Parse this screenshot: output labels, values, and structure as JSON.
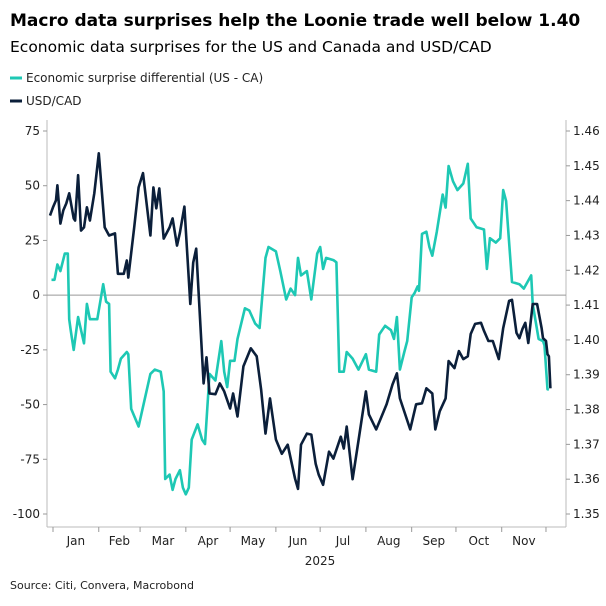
{
  "chart_data": {
    "type": "line",
    "title": "Macro data surprises help the Loonie trade well below 1.40",
    "subtitle": "Economic data surprises for the US and Canada and USD/CAD",
    "xlabel": "2025",
    "source": "Source: Citi, Convera, Macrobond",
    "x_ticks": [
      "Jan",
      "Feb",
      "Mar",
      "Apr",
      "May",
      "Jun",
      "Jul",
      "Aug",
      "Sep",
      "Oct",
      "Nov"
    ],
    "y_left": {
      "ticks": [
        "75",
        "50",
        "25",
        "0",
        "-25",
        "-50",
        "-75",
        "-100"
      ],
      "range": [
        -100,
        75
      ]
    },
    "y_right": {
      "ticks": [
        "1.46",
        "1.45",
        "1.44",
        "1.43",
        "1.42",
        "1.41",
        "1.40",
        "1.39",
        "1.38",
        "1.37",
        "1.36",
        "1.35"
      ],
      "range": [
        1.35,
        1.46
      ]
    },
    "zero_line": true,
    "grid": false,
    "legend_position": "top-left",
    "series": [
      {
        "name": "Economic surprise differential (US - CA)",
        "axis": "left",
        "color": "#1ec8b4",
        "points": [
          [
            "2024-12-31",
            7
          ],
          [
            "2025-01-02",
            7
          ],
          [
            "2025-01-04",
            14
          ],
          [
            "2025-01-06",
            11
          ],
          [
            "2025-01-09",
            19
          ],
          [
            "2025-01-11",
            19
          ],
          [
            "2025-01-12",
            -11
          ],
          [
            "2025-01-13",
            -16
          ],
          [
            "2025-01-15",
            -25
          ],
          [
            "2025-01-18",
            -10
          ],
          [
            "2025-01-22",
            -22
          ],
          [
            "2025-01-24",
            -4
          ],
          [
            "2025-01-26",
            -11
          ],
          [
            "2025-01-31",
            -11
          ],
          [
            "2025-02-04",
            5
          ],
          [
            "2025-02-06",
            -3
          ],
          [
            "2025-02-08",
            -4
          ],
          [
            "2025-02-09",
            -35
          ],
          [
            "2025-02-12",
            -38
          ],
          [
            "2025-02-14",
            -34
          ],
          [
            "2025-02-16",
            -29
          ],
          [
            "2025-02-20",
            -26
          ],
          [
            "2025-02-21",
            -27
          ],
          [
            "2025-02-23",
            -52
          ],
          [
            "2025-02-28",
            -60
          ],
          [
            "2025-03-04",
            -48
          ],
          [
            "2025-03-08",
            -36
          ],
          [
            "2025-03-11",
            -34
          ],
          [
            "2025-03-15",
            -35
          ],
          [
            "2025-03-17",
            -44
          ],
          [
            "2025-03-18",
            -84
          ],
          [
            "2025-03-21",
            -82
          ],
          [
            "2025-03-23",
            -89
          ],
          [
            "2025-03-25",
            -84
          ],
          [
            "2025-03-28",
            -80
          ],
          [
            "2025-03-30",
            -88
          ],
          [
            "2025-04-01",
            -91
          ],
          [
            "2025-04-03",
            -88
          ],
          [
            "2025-04-05",
            -66
          ],
          [
            "2025-04-09",
            -59
          ],
          [
            "2025-04-12",
            -66
          ],
          [
            "2025-04-14",
            -68
          ],
          [
            "2025-04-17",
            -36
          ],
          [
            "2025-04-21",
            -39
          ],
          [
            "2025-04-25",
            -21
          ],
          [
            "2025-04-27",
            -35
          ],
          [
            "2025-04-29",
            -42
          ],
          [
            "2025-05-01",
            -30
          ],
          [
            "2025-05-04",
            -30
          ],
          [
            "2025-05-06",
            -20
          ],
          [
            "2025-05-11",
            -6
          ],
          [
            "2025-05-14",
            -7
          ],
          [
            "2025-05-18",
            -13
          ],
          [
            "2025-05-21",
            -15
          ],
          [
            "2025-05-25",
            17
          ],
          [
            "2025-05-27",
            22
          ],
          [
            "2025-06-01",
            20
          ],
          [
            "2025-06-04",
            11
          ],
          [
            "2025-06-08",
            -2
          ],
          [
            "2025-06-11",
            3
          ],
          [
            "2025-06-14",
            0
          ],
          [
            "2025-06-16",
            17
          ],
          [
            "2025-06-18",
            9
          ],
          [
            "2025-06-22",
            11
          ],
          [
            "2025-06-25",
            -2
          ],
          [
            "2025-06-29",
            19
          ],
          [
            "2025-07-01",
            22
          ],
          [
            "2025-07-03",
            12
          ],
          [
            "2025-07-05",
            17
          ],
          [
            "2025-07-10",
            16
          ],
          [
            "2025-07-12",
            15
          ],
          [
            "2025-07-14",
            -35
          ],
          [
            "2025-07-17",
            -35
          ],
          [
            "2025-07-19",
            -26
          ],
          [
            "2025-07-23",
            -29
          ],
          [
            "2025-07-27",
            -34
          ],
          [
            "2025-08-01",
            -27
          ],
          [
            "2025-08-03",
            -34
          ],
          [
            "2025-08-08",
            -35
          ],
          [
            "2025-08-10",
            -18
          ],
          [
            "2025-08-14",
            -14
          ],
          [
            "2025-08-18",
            -16
          ],
          [
            "2025-08-20",
            -20
          ],
          [
            "2025-08-22",
            -10
          ],
          [
            "2025-08-24",
            -34
          ],
          [
            "2025-08-27",
            -26
          ],
          [
            "2025-08-29",
            -21
          ],
          [
            "2025-09-01",
            -1
          ],
          [
            "2025-09-03",
            1
          ],
          [
            "2025-09-05",
            4
          ],
          [
            "2025-09-06",
            2
          ],
          [
            "2025-09-08",
            28
          ],
          [
            "2025-09-11",
            29
          ],
          [
            "2025-09-13",
            22
          ],
          [
            "2025-09-15",
            18
          ],
          [
            "2025-09-18",
            29
          ],
          [
            "2025-09-22",
            46
          ],
          [
            "2025-09-24",
            40
          ],
          [
            "2025-09-26",
            59
          ],
          [
            "2025-09-29",
            52
          ],
          [
            "2025-10-02",
            48
          ],
          [
            "2025-10-06",
            51
          ],
          [
            "2025-10-09",
            60
          ],
          [
            "2025-10-11",
            35
          ],
          [
            "2025-10-15",
            31
          ],
          [
            "2025-10-20",
            30
          ],
          [
            "2025-10-22",
            12
          ],
          [
            "2025-10-24",
            26
          ],
          [
            "2025-10-28",
            24
          ],
          [
            "2025-10-31",
            26
          ],
          [
            "2025-11-02",
            48
          ],
          [
            "2025-11-04",
            43
          ],
          [
            "2025-11-08",
            6
          ],
          [
            "2025-11-13",
            5
          ],
          [
            "2025-11-16",
            3
          ],
          [
            "2025-11-21",
            9
          ],
          [
            "2025-11-22",
            -4
          ],
          [
            "2025-11-26",
            -20
          ],
          [
            "2025-11-29",
            -21
          ],
          [
            "2025-11-30",
            -23
          ],
          [
            "2025-12-02",
            -43
          ],
          [
            "2025-12-03",
            -43
          ]
        ]
      },
      {
        "name": "USD/CAD",
        "axis": "right",
        "color": "#0b1f3a",
        "points": [
          [
            "2024-12-30",
            1.4357
          ],
          [
            "2025-01-01",
            1.4381
          ],
          [
            "2025-01-03",
            1.4401
          ],
          [
            "2025-01-04",
            1.4444
          ],
          [
            "2025-01-06",
            1.4334
          ],
          [
            "2025-01-08",
            1.4372
          ],
          [
            "2025-01-10",
            1.4392
          ],
          [
            "2025-01-12",
            1.4421
          ],
          [
            "2025-01-15",
            1.4349
          ],
          [
            "2025-01-16",
            1.4343
          ],
          [
            "2025-01-18",
            1.4473
          ],
          [
            "2025-01-20",
            1.4314
          ],
          [
            "2025-01-22",
            1.4323
          ],
          [
            "2025-01-24",
            1.4381
          ],
          [
            "2025-01-26",
            1.4343
          ],
          [
            "2025-01-29",
            1.4421
          ],
          [
            "2025-02-01",
            1.4536
          ],
          [
            "2025-02-05",
            1.4323
          ],
          [
            "2025-02-08",
            1.43
          ],
          [
            "2025-02-12",
            1.4306
          ],
          [
            "2025-02-14",
            1.419
          ],
          [
            "2025-02-18",
            1.419
          ],
          [
            "2025-02-20",
            1.4228
          ],
          [
            "2025-02-21",
            1.4179
          ],
          [
            "2025-02-25",
            1.4323
          ],
          [
            "2025-02-28",
            1.4438
          ],
          [
            "2025-03-03",
            1.4479
          ],
          [
            "2025-03-08",
            1.43
          ],
          [
            "2025-03-10",
            1.4438
          ],
          [
            "2025-03-12",
            1.4378
          ],
          [
            "2025-03-14",
            1.4435
          ],
          [
            "2025-03-17",
            1.4291
          ],
          [
            "2025-03-21",
            1.4323
          ],
          [
            "2025-03-23",
            1.4349
          ],
          [
            "2025-03-26",
            1.4271
          ],
          [
            "2025-03-28",
            1.4308
          ],
          [
            "2025-03-31",
            1.4383
          ],
          [
            "2025-04-04",
            1.4103
          ],
          [
            "2025-04-06",
            1.4222
          ],
          [
            "2025-04-08",
            1.4262
          ],
          [
            "2025-04-13",
            1.3875
          ],
          [
            "2025-04-15",
            1.395
          ],
          [
            "2025-04-17",
            1.3846
          ],
          [
            "2025-04-21",
            1.3844
          ],
          [
            "2025-04-24",
            1.3875
          ],
          [
            "2025-04-27",
            1.3852
          ],
          [
            "2025-05-01",
            1.3803
          ],
          [
            "2025-05-03",
            1.3846
          ],
          [
            "2025-05-06",
            1.378
          ],
          [
            "2025-05-10",
            1.3924
          ],
          [
            "2025-05-15",
            1.3976
          ],
          [
            "2025-05-19",
            1.3953
          ],
          [
            "2025-05-22",
            1.3858
          ],
          [
            "2025-05-25",
            1.3731
          ],
          [
            "2025-05-28",
            1.3832
          ],
          [
            "2025-06-01",
            1.3714
          ],
          [
            "2025-06-05",
            1.3673
          ],
          [
            "2025-06-09",
            1.3699
          ],
          [
            "2025-06-14",
            1.3601
          ],
          [
            "2025-06-16",
            1.3572
          ],
          [
            "2025-06-18",
            1.3699
          ],
          [
            "2025-06-22",
            1.3731
          ],
          [
            "2025-06-25",
            1.3728
          ],
          [
            "2025-06-28",
            1.3644
          ],
          [
            "2025-06-30",
            1.3613
          ],
          [
            "2025-07-03",
            1.3584
          ],
          [
            "2025-07-07",
            1.3679
          ],
          [
            "2025-07-10",
            1.3659
          ],
          [
            "2025-07-15",
            1.3722
          ],
          [
            "2025-07-17",
            1.3688
          ],
          [
            "2025-07-19",
            1.3751
          ],
          [
            "2025-07-23",
            1.36
          ],
          [
            "2025-07-27",
            1.3711
          ],
          [
            "2025-08-01",
            1.3852
          ],
          [
            "2025-08-03",
            1.3786
          ],
          [
            "2025-08-08",
            1.3743
          ],
          [
            "2025-08-11",
            1.3774
          ],
          [
            "2025-08-15",
            1.3815
          ],
          [
            "2025-08-19",
            1.3872
          ],
          [
            "2025-08-22",
            1.3904
          ],
          [
            "2025-08-24",
            1.3832
          ],
          [
            "2025-08-31",
            1.3743
          ],
          [
            "2025-09-04",
            1.3815
          ],
          [
            "2025-09-08",
            1.3818
          ],
          [
            "2025-09-11",
            1.3861
          ],
          [
            "2025-09-15",
            1.3846
          ],
          [
            "2025-09-17",
            1.3743
          ],
          [
            "2025-09-20",
            1.3795
          ],
          [
            "2025-09-24",
            1.3832
          ],
          [
            "2025-09-26",
            1.3939
          ],
          [
            "2025-09-30",
            1.3919
          ],
          [
            "2025-10-03",
            1.3968
          ],
          [
            "2025-10-06",
            1.3945
          ],
          [
            "2025-10-09",
            1.3953
          ],
          [
            "2025-10-11",
            1.4017
          ],
          [
            "2025-10-14",
            1.4046
          ],
          [
            "2025-10-18",
            1.4049
          ],
          [
            "2025-10-20",
            1.4026
          ],
          [
            "2025-10-23",
            1.3997
          ],
          [
            "2025-10-26",
            1.3997
          ],
          [
            "2025-10-30",
            1.3945
          ],
          [
            "2025-11-02",
            1.4034
          ],
          [
            "2025-11-06",
            1.4112
          ],
          [
            "2025-11-08",
            1.4115
          ],
          [
            "2025-11-11",
            1.402
          ],
          [
            "2025-11-13",
            1.4005
          ],
          [
            "2025-11-15",
            1.4031
          ],
          [
            "2025-11-17",
            1.4049
          ],
          [
            "2025-11-19",
            1.3991
          ],
          [
            "2025-11-22",
            1.4103
          ],
          [
            "2025-11-25",
            1.4103
          ],
          [
            "2025-11-28",
            1.4034
          ],
          [
            "2025-11-29",
            1.4005
          ],
          [
            "2025-12-01",
            1.3997
          ],
          [
            "2025-12-02",
            1.3959
          ],
          [
            "2025-12-03",
            1.3953
          ],
          [
            "2025-12-04",
            1.3861
          ]
        ]
      }
    ]
  }
}
